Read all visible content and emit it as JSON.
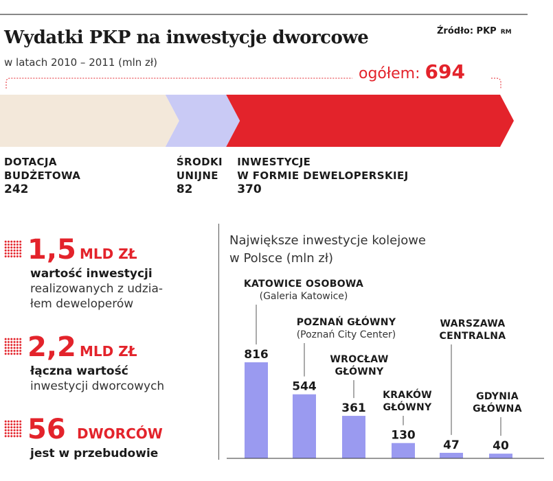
{
  "header": {
    "title": "Wydatki PKP na inwestycje dworcowe",
    "subtitle": "w latach 2010 – 2011 (mln zł)",
    "source": "Źródło: PKP",
    "author": "RM"
  },
  "chart_data": [
    {
      "type": "bar",
      "orientation": "stacked-horizontal",
      "total_label": "ogółem:",
      "total": "694",
      "segments": [
        {
          "label_lines": [
            "DOTACJA",
            "BUDŻETOWA"
          ],
          "value": 242,
          "value_text": "242",
          "color": "#f3e8da"
        },
        {
          "label_lines": [
            "ŚRODKI",
            "UNIJNE"
          ],
          "value": 82,
          "value_text": "82",
          "color": "#c9caf5"
        },
        {
          "label_lines": [
            "INWESTYCJE",
            "W FORMIE DEWELOPERSKIEJ"
          ],
          "value": 370,
          "value_text": "370",
          "color": "#e3232b"
        }
      ]
    },
    {
      "type": "bar",
      "title_lines": [
        "Największe inwestycje kolejowe",
        "w Polsce (mln zł)"
      ],
      "bar_color": "#9a9af0",
      "ylim": [
        0,
        816
      ],
      "bars": [
        {
          "name_lines": [
            "KATOWICE OSOBOWA"
          ],
          "sub": "(Galeria Katowice)",
          "value": 816,
          "value_text": "816"
        },
        {
          "name_lines": [
            "POZNAŃ GŁÓWNY"
          ],
          "sub": "(Poznań City Center)",
          "value": 544,
          "value_text": "544"
        },
        {
          "name_lines": [
            "WROCŁAW",
            "GŁÓWNY"
          ],
          "sub": "",
          "value": 361,
          "value_text": "361"
        },
        {
          "name_lines": [
            "KRAKÓW",
            "GŁÓWNY"
          ],
          "sub": "",
          "value": 130,
          "value_text": "130"
        },
        {
          "name_lines": [
            "WARSZAWA",
            "CENTRALNA"
          ],
          "sub": "",
          "value": 47,
          "value_text": "47"
        },
        {
          "name_lines": [
            "GDYNIA",
            "GŁÓWNA"
          ],
          "sub": "",
          "value": 40,
          "value_text": "40"
        }
      ]
    }
  ],
  "stats": [
    {
      "number": "1,5",
      "unit": "MLD ZŁ",
      "bold": "wartość inwestycji",
      "text_lines": [
        "realizowanych z udzia-",
        "łem deweloperów"
      ]
    },
    {
      "number": "2,2",
      "unit": "MLD ZŁ",
      "bold": "łączna wartość",
      "text_lines": [
        "inwestycji dworcowych"
      ]
    },
    {
      "number": "56",
      "unit": "DWORCÓW",
      "bold": "jest w przebudowie",
      "text_lines": []
    }
  ],
  "colors": {
    "accent": "#e3232b",
    "bar": "#9a9af0",
    "text": "#1a1a1a"
  }
}
